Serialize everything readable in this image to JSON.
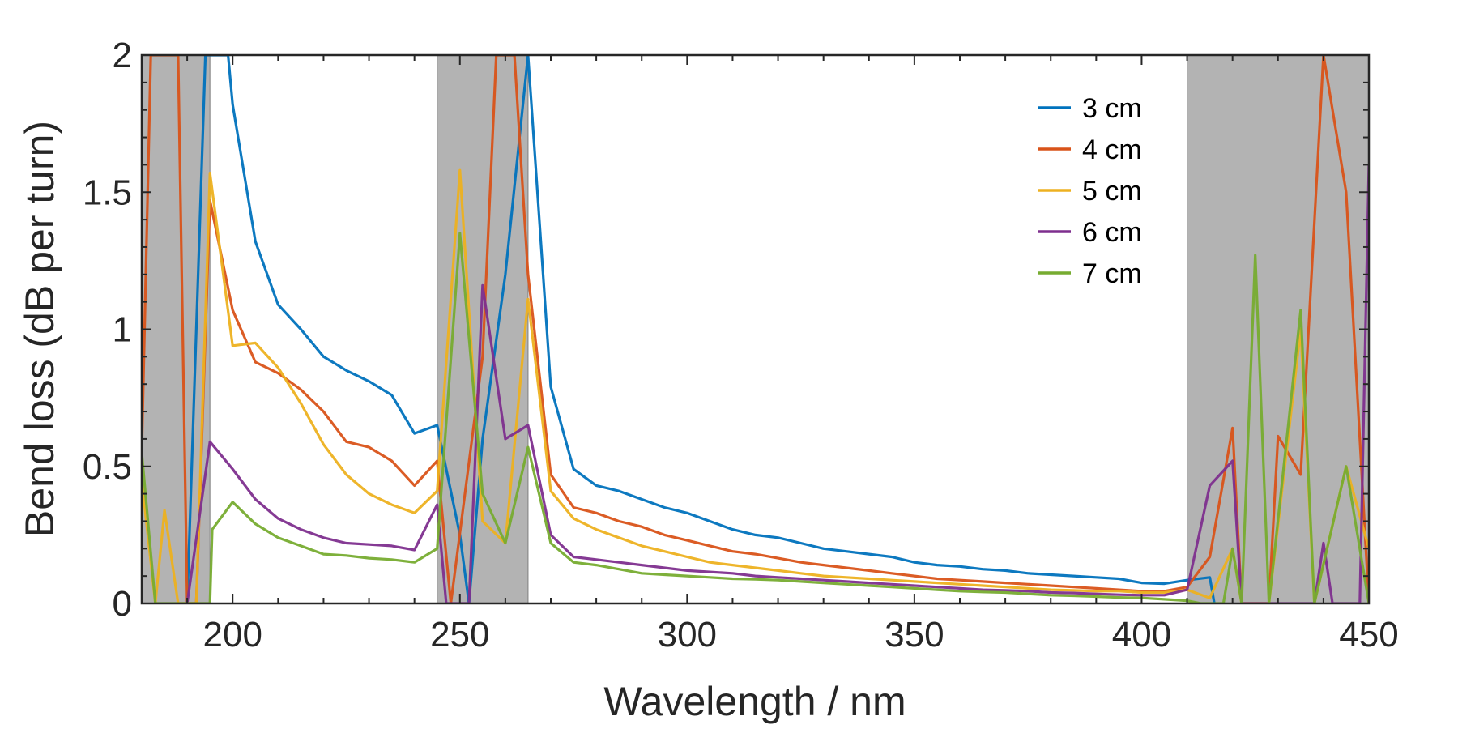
{
  "chart_data": {
    "type": "line",
    "xlabel": "Wavelength / nm",
    "ylabel": "Bend loss (dB per turn)",
    "xlim": [
      180,
      450
    ],
    "ylim": [
      0,
      2
    ],
    "xticks": [
      200,
      250,
      300,
      350,
      400,
      450
    ],
    "yticks": [
      0,
      0.5,
      1,
      1.5,
      2
    ],
    "xtick_labels": [
      "200",
      "250",
      "300",
      "350",
      "400",
      "450"
    ],
    "ytick_labels": [
      "0",
      "0.5",
      "1",
      "1.5",
      "2"
    ],
    "grid": false,
    "legend_position": "top-right",
    "shaded_regions": [
      [
        180,
        195
      ],
      [
        245,
        265
      ],
      [
        410,
        450
      ]
    ],
    "shade_color": "#b3b3b3",
    "series": [
      {
        "name": "3 cm",
        "color": "#0072bd",
        "points": [
          [
            190,
            0
          ],
          [
            194,
            2.0
          ],
          [
            199,
            2.0
          ],
          [
            200,
            1.82
          ],
          [
            205,
            1.32
          ],
          [
            210,
            1.09
          ],
          [
            215,
            1.0
          ],
          [
            220,
            0.9
          ],
          [
            225,
            0.85
          ],
          [
            230,
            0.81
          ],
          [
            235,
            0.76
          ],
          [
            240,
            0.62
          ],
          [
            245,
            0.65
          ],
          [
            250,
            0.25
          ],
          [
            252,
            0
          ],
          [
            255,
            0.6
          ],
          [
            260,
            1.2
          ],
          [
            265,
            2.0
          ],
          [
            270,
            0.79
          ],
          [
            275,
            0.49
          ],
          [
            280,
            0.43
          ],
          [
            285,
            0.41
          ],
          [
            290,
            0.38
          ],
          [
            295,
            0.35
          ],
          [
            300,
            0.33
          ],
          [
            305,
            0.3
          ],
          [
            310,
            0.27
          ],
          [
            315,
            0.25
          ],
          [
            320,
            0.24
          ],
          [
            325,
            0.22
          ],
          [
            330,
            0.2
          ],
          [
            335,
            0.19
          ],
          [
            340,
            0.18
          ],
          [
            345,
            0.17
          ],
          [
            350,
            0.15
          ],
          [
            355,
            0.14
          ],
          [
            360,
            0.135
          ],
          [
            365,
            0.125
          ],
          [
            370,
            0.12
          ],
          [
            375,
            0.11
          ],
          [
            380,
            0.105
          ],
          [
            385,
            0.1
          ],
          [
            390,
            0.095
          ],
          [
            395,
            0.09
          ],
          [
            400,
            0.075
          ],
          [
            405,
            0.072
          ],
          [
            410,
            0.085
          ],
          [
            415,
            0.095
          ],
          [
            416,
            0
          ]
        ]
      },
      {
        "name": "4 cm",
        "color": "#d95319",
        "points": [
          [
            180,
            0.55
          ],
          [
            182,
            2.0
          ],
          [
            188,
            2.0
          ],
          [
            190,
            0
          ],
          [
            192,
            0
          ],
          [
            195,
            1.47
          ],
          [
            200,
            1.07
          ],
          [
            205,
            0.88
          ],
          [
            210,
            0.84
          ],
          [
            215,
            0.78
          ],
          [
            220,
            0.7
          ],
          [
            225,
            0.59
          ],
          [
            230,
            0.57
          ],
          [
            235,
            0.52
          ],
          [
            240,
            0.43
          ],
          [
            245,
            0.52
          ],
          [
            248,
            0
          ],
          [
            255,
            0.9
          ],
          [
            258,
            2.0
          ],
          [
            262,
            2.0
          ],
          [
            265,
            1.2
          ],
          [
            270,
            0.47
          ],
          [
            275,
            0.35
          ],
          [
            280,
            0.33
          ],
          [
            285,
            0.3
          ],
          [
            290,
            0.28
          ],
          [
            295,
            0.25
          ],
          [
            300,
            0.23
          ],
          [
            305,
            0.21
          ],
          [
            310,
            0.19
          ],
          [
            315,
            0.18
          ],
          [
            320,
            0.165
          ],
          [
            325,
            0.15
          ],
          [
            330,
            0.14
          ],
          [
            335,
            0.13
          ],
          [
            340,
            0.12
          ],
          [
            345,
            0.11
          ],
          [
            350,
            0.1
          ],
          [
            355,
            0.09
          ],
          [
            360,
            0.085
          ],
          [
            365,
            0.08
          ],
          [
            370,
            0.075
          ],
          [
            375,
            0.07
          ],
          [
            380,
            0.065
          ],
          [
            385,
            0.06
          ],
          [
            390,
            0.055
          ],
          [
            395,
            0.05
          ],
          [
            400,
            0.045
          ],
          [
            405,
            0.045
          ],
          [
            410,
            0.06
          ],
          [
            415,
            0.17
          ],
          [
            420,
            0.64
          ],
          [
            422,
            0
          ],
          [
            428,
            0
          ],
          [
            430,
            0.61
          ],
          [
            435,
            0.47
          ],
          [
            440,
            2.0
          ],
          [
            445,
            1.5
          ],
          [
            448,
            0.6
          ],
          [
            450,
            0
          ]
        ]
      },
      {
        "name": "5 cm",
        "color": "#edb120",
        "points": [
          [
            180,
            0.45
          ],
          [
            183,
            0
          ],
          [
            185,
            0.34
          ],
          [
            188,
            0
          ],
          [
            192,
            0
          ],
          [
            195,
            1.57
          ],
          [
            200,
            0.94
          ],
          [
            205,
            0.95
          ],
          [
            210,
            0.86
          ],
          [
            215,
            0.73
          ],
          [
            220,
            0.58
          ],
          [
            225,
            0.47
          ],
          [
            230,
            0.4
          ],
          [
            235,
            0.36
          ],
          [
            240,
            0.33
          ],
          [
            245,
            0.41
          ],
          [
            250,
            1.58
          ],
          [
            255,
            0.3
          ],
          [
            260,
            0.22
          ],
          [
            265,
            1.11
          ],
          [
            270,
            0.41
          ],
          [
            275,
            0.31
          ],
          [
            280,
            0.27
          ],
          [
            285,
            0.24
          ],
          [
            290,
            0.21
          ],
          [
            295,
            0.19
          ],
          [
            300,
            0.17
          ],
          [
            305,
            0.15
          ],
          [
            310,
            0.14
          ],
          [
            315,
            0.13
          ],
          [
            320,
            0.12
          ],
          [
            325,
            0.11
          ],
          [
            330,
            0.1
          ],
          [
            335,
            0.095
          ],
          [
            340,
            0.09
          ],
          [
            345,
            0.085
          ],
          [
            350,
            0.08
          ],
          [
            355,
            0.075
          ],
          [
            360,
            0.07
          ],
          [
            365,
            0.065
          ],
          [
            370,
            0.06
          ],
          [
            375,
            0.055
          ],
          [
            380,
            0.05
          ],
          [
            385,
            0.048
          ],
          [
            390,
            0.045
          ],
          [
            395,
            0.045
          ],
          [
            400,
            0.04
          ],
          [
            405,
            0.04
          ],
          [
            410,
            0.05
          ],
          [
            415,
            0.02
          ],
          [
            420,
            0.2
          ],
          [
            422,
            0
          ],
          [
            428,
            0
          ],
          [
            435,
            1.0
          ],
          [
            438,
            0
          ],
          [
            445,
            0.5
          ],
          [
            450,
            0.2
          ]
        ]
      },
      {
        "name": "6 cm",
        "color": "#7e2f8e",
        "points": [
          [
            190,
            0
          ],
          [
            195,
            0.59
          ],
          [
            200,
            0.49
          ],
          [
            205,
            0.38
          ],
          [
            210,
            0.31
          ],
          [
            215,
            0.27
          ],
          [
            220,
            0.24
          ],
          [
            225,
            0.22
          ],
          [
            230,
            0.215
          ],
          [
            235,
            0.21
          ],
          [
            240,
            0.195
          ],
          [
            245,
            0.36
          ],
          [
            247,
            0
          ],
          [
            252,
            0
          ],
          [
            255,
            1.16
          ],
          [
            260,
            0.6
          ],
          [
            265,
            0.65
          ],
          [
            270,
            0.25
          ],
          [
            275,
            0.17
          ],
          [
            280,
            0.16
          ],
          [
            285,
            0.15
          ],
          [
            290,
            0.14
          ],
          [
            295,
            0.13
          ],
          [
            300,
            0.12
          ],
          [
            305,
            0.115
          ],
          [
            310,
            0.11
          ],
          [
            315,
            0.1
          ],
          [
            320,
            0.095
          ],
          [
            325,
            0.09
          ],
          [
            330,
            0.085
          ],
          [
            335,
            0.08
          ],
          [
            340,
            0.075
          ],
          [
            345,
            0.07
          ],
          [
            350,
            0.065
          ],
          [
            355,
            0.06
          ],
          [
            360,
            0.055
          ],
          [
            365,
            0.05
          ],
          [
            370,
            0.048
          ],
          [
            375,
            0.045
          ],
          [
            380,
            0.04
          ],
          [
            385,
            0.038
          ],
          [
            390,
            0.035
          ],
          [
            395,
            0.032
          ],
          [
            400,
            0.03
          ],
          [
            405,
            0.03
          ],
          [
            410,
            0.05
          ],
          [
            415,
            0.43
          ],
          [
            420,
            0.52
          ],
          [
            422,
            0
          ],
          [
            438,
            0
          ],
          [
            440,
            0.22
          ],
          [
            442,
            0
          ],
          [
            448,
            0
          ],
          [
            450,
            1.6
          ]
        ]
      },
      {
        "name": "7 cm",
        "color": "#77ac30",
        "points": [
          [
            180,
            0.55
          ],
          [
            183,
            0
          ],
          [
            195,
            0
          ],
          [
            195.5,
            0.27
          ],
          [
            200,
            0.37
          ],
          [
            205,
            0.29
          ],
          [
            210,
            0.24
          ],
          [
            215,
            0.21
          ],
          [
            220,
            0.18
          ],
          [
            225,
            0.175
          ],
          [
            230,
            0.165
          ],
          [
            235,
            0.16
          ],
          [
            240,
            0.15
          ],
          [
            245,
            0.2
          ],
          [
            250,
            1.35
          ],
          [
            255,
            0.4
          ],
          [
            260,
            0.22
          ],
          [
            265,
            0.57
          ],
          [
            270,
            0.22
          ],
          [
            275,
            0.15
          ],
          [
            280,
            0.14
          ],
          [
            285,
            0.125
          ],
          [
            290,
            0.11
          ],
          [
            295,
            0.105
          ],
          [
            300,
            0.1
          ],
          [
            305,
            0.095
          ],
          [
            310,
            0.09
          ],
          [
            315,
            0.088
          ],
          [
            320,
            0.085
          ],
          [
            325,
            0.08
          ],
          [
            330,
            0.075
          ],
          [
            335,
            0.07
          ],
          [
            340,
            0.065
          ],
          [
            345,
            0.06
          ],
          [
            350,
            0.055
          ],
          [
            355,
            0.05
          ],
          [
            360,
            0.045
          ],
          [
            365,
            0.042
          ],
          [
            370,
            0.04
          ],
          [
            375,
            0.035
          ],
          [
            380,
            0.03
          ],
          [
            385,
            0.028
          ],
          [
            390,
            0.025
          ],
          [
            395,
            0.022
          ],
          [
            400,
            0.02
          ],
          [
            405,
            0.015
          ],
          [
            410,
            0.01
          ],
          [
            413,
            0
          ],
          [
            418,
            0
          ],
          [
            420,
            0.2
          ],
          [
            422,
            0
          ],
          [
            425,
            1.27
          ],
          [
            428,
            0
          ],
          [
            435,
            1.07
          ],
          [
            438,
            0
          ],
          [
            445,
            0.5
          ],
          [
            450,
            0
          ]
        ]
      }
    ]
  }
}
